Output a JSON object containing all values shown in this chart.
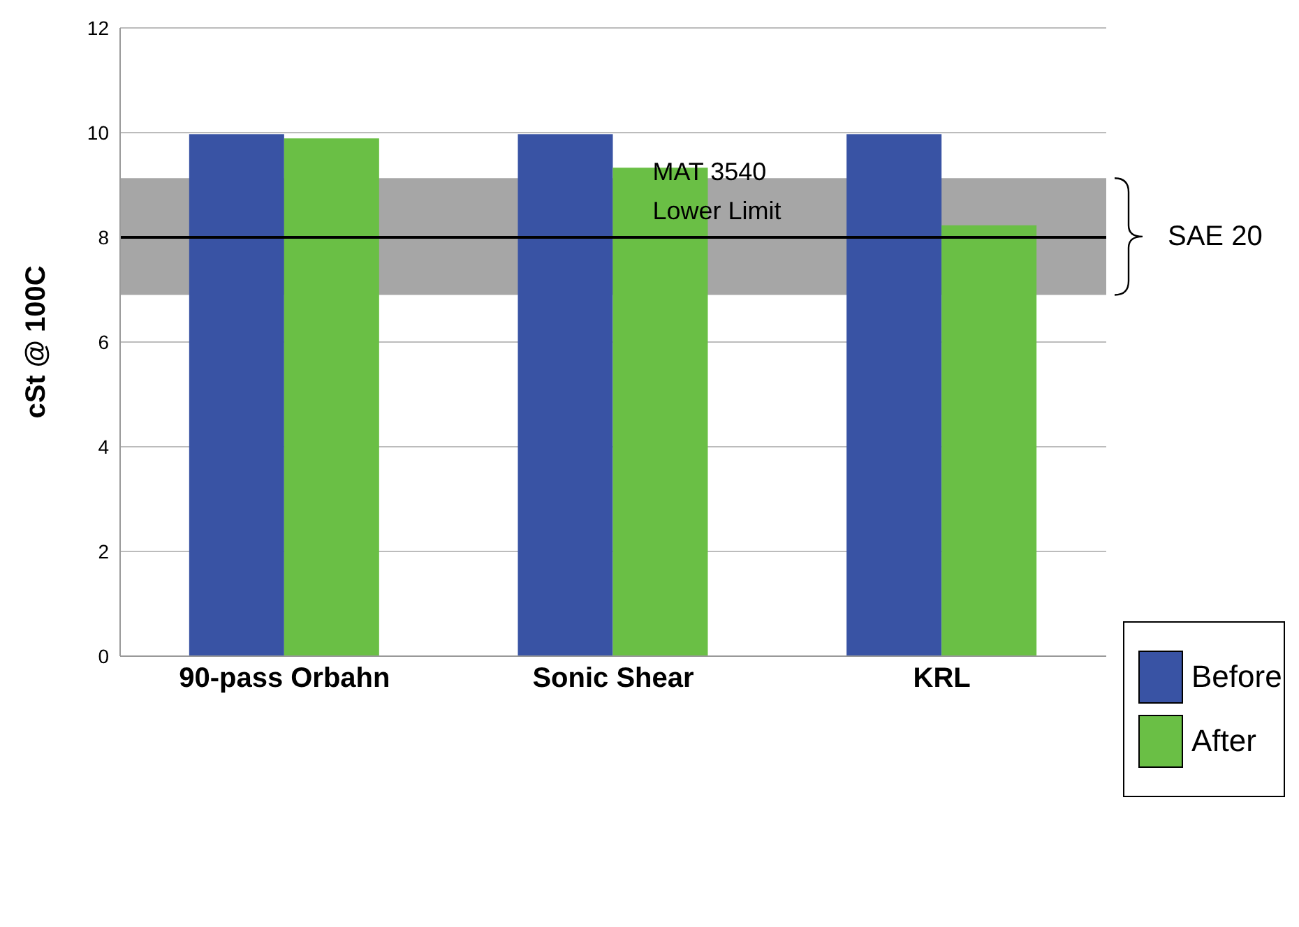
{
  "chart_data": {
    "type": "bar",
    "ylabel": "cSt @ 100C",
    "categories": [
      "90-pass Orbahn",
      "Sonic Shear",
      "KRL"
    ],
    "series": [
      {
        "name": "Before",
        "color": "#3953a4",
        "values": [
          9.97,
          9.97,
          9.97
        ]
      },
      {
        "name": "After",
        "color": "#6abf45",
        "values": [
          9.89,
          9.33,
          8.23
        ]
      }
    ],
    "ylim": [
      0,
      12
    ],
    "yticks": [
      0,
      2,
      4,
      6,
      8,
      10,
      12
    ],
    "grid": "y",
    "legend": "bottom right",
    "bands": [
      {
        "axis": "y",
        "from": 6.9,
        "to": 9.13,
        "label": "SAE 20",
        "color": "#a6a6a6"
      }
    ],
    "ref_lines": [
      {
        "axis": "y",
        "value": 8,
        "label": "MAT 3540 Lower Limit",
        "color": "#000000"
      }
    ]
  }
}
